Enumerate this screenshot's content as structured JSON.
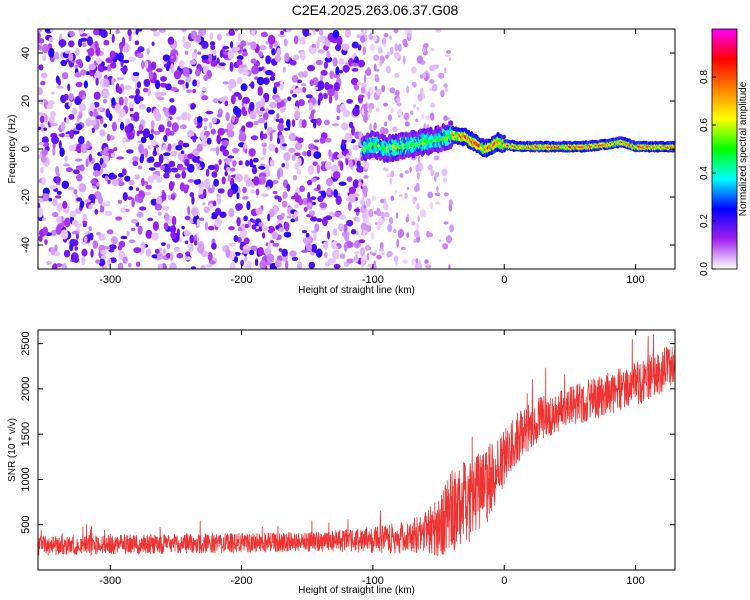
{
  "title": "C2E4.2025.263.06.37.G08",
  "chart_data": [
    {
      "type": "heatmap",
      "name": "spectrogram",
      "xlabel": "Height of straight line (km)",
      "ylabel": "Frequency (Hz)",
      "xlim": [
        -355,
        130
      ],
      "ylim": [
        -50,
        50
      ],
      "xticks": [
        -300,
        -200,
        -100,
        0,
        100
      ],
      "yticks": [
        -40,
        -20,
        0,
        20,
        40
      ],
      "colorbar": {
        "label": "Normalized spectral amplitude",
        "range": [
          0,
          1
        ],
        "ticks": [
          0.0,
          0.2,
          0.4,
          0.6,
          0.8
        ],
        "tick_labels": [
          "0.0",
          "0.2",
          "0.4",
          "0.6",
          "0.8"
        ],
        "colors": [
          "#ffffff",
          "#a020f0",
          "#0000ff",
          "#00ffff",
          "#00ff00",
          "#ffff00",
          "#ff8000",
          "#ff0000",
          "#ff00ff"
        ]
      },
      "signal_trace": [
        [
          -108,
          0
        ],
        [
          -100,
          2
        ],
        [
          -90,
          0
        ],
        [
          -80,
          1
        ],
        [
          -70,
          2
        ],
        [
          -60,
          3
        ],
        [
          -50,
          4
        ],
        [
          -40,
          6
        ],
        [
          -30,
          5
        ],
        [
          -20,
          2
        ],
        [
          -15,
          0
        ],
        [
          -10,
          1
        ],
        [
          -5,
          3
        ],
        [
          0,
          2
        ],
        [
          10,
          1
        ],
        [
          20,
          1
        ],
        [
          40,
          1
        ],
        [
          60,
          1
        ],
        [
          80,
          2
        ],
        [
          90,
          3
        ],
        [
          100,
          1
        ],
        [
          130,
          1
        ]
      ],
      "noise": {
        "x_range": [
          -355,
          -108
        ],
        "sparse_x_range": [
          -108,
          -40
        ],
        "amplitude": 0.2
      }
    },
    {
      "type": "line",
      "name": "snr",
      "xlabel": "Height of straight line (km)",
      "ylabel": "SNR (10 * v/v)",
      "xlim": [
        -355,
        130
      ],
      "ylim": [
        0,
        2650
      ],
      "xticks": [
        -300,
        -200,
        -100,
        0,
        100
      ],
      "yticks": [
        500,
        1000,
        1500,
        2000,
        2500
      ],
      "color": "#ee3333",
      "trend": [
        [
          -355,
          270
        ],
        [
          -250,
          290
        ],
        [
          -150,
          310
        ],
        [
          -100,
          330
        ],
        [
          -70,
          370
        ],
        [
          -50,
          480
        ],
        [
          -40,
          650
        ],
        [
          -30,
          750
        ],
        [
          -20,
          850
        ],
        [
          -10,
          1000
        ],
        [
          0,
          1250
        ],
        [
          10,
          1450
        ],
        [
          20,
          1600
        ],
        [
          40,
          1750
        ],
        [
          60,
          1850
        ],
        [
          80,
          1950
        ],
        [
          100,
          2050
        ],
        [
          120,
          2200
        ],
        [
          130,
          2280
        ]
      ],
      "noise_amplitude": [
        [
          -355,
          110
        ],
        [
          -150,
          110
        ],
        [
          -100,
          140
        ],
        [
          -60,
          220
        ],
        [
          -40,
          450
        ],
        [
          -20,
          500
        ],
        [
          0,
          300
        ],
        [
          40,
          230
        ],
        [
          130,
          250
        ]
      ]
    }
  ]
}
